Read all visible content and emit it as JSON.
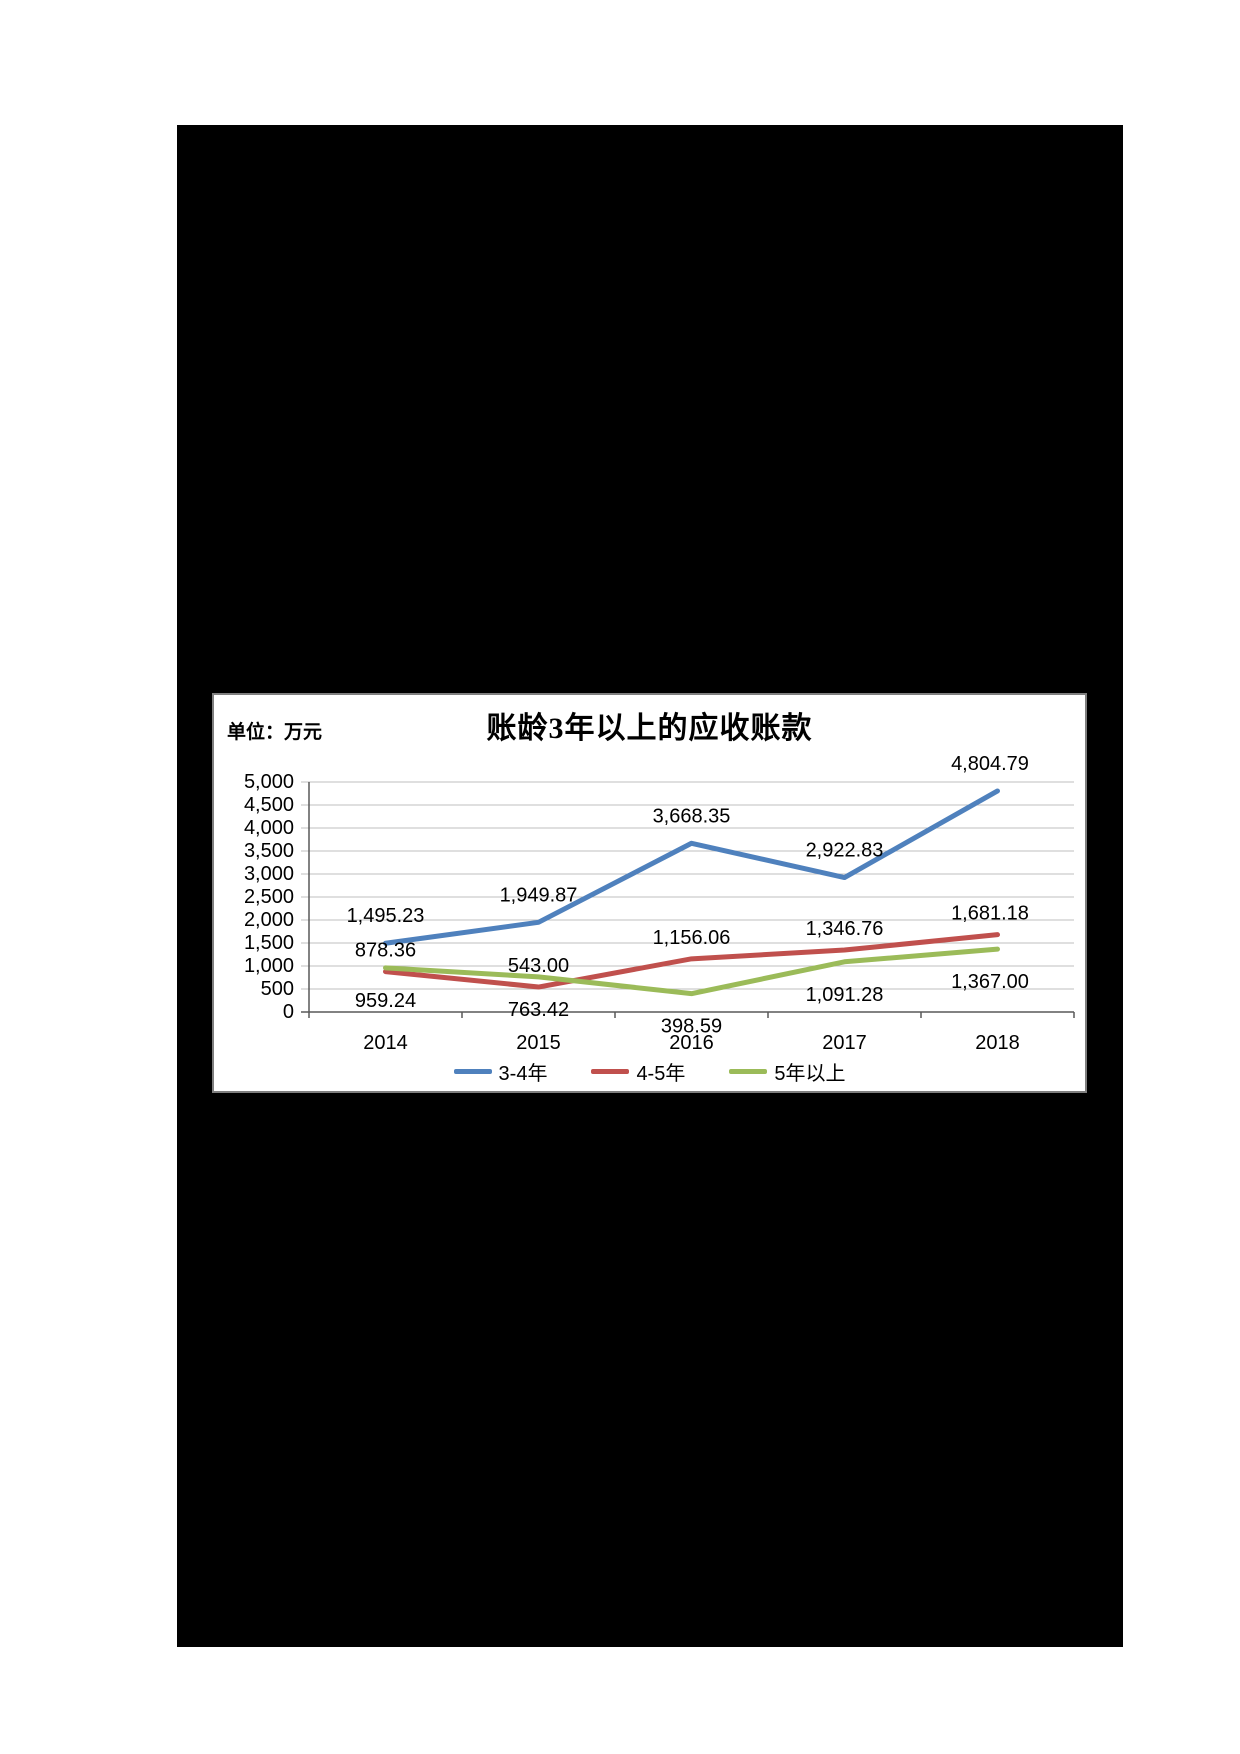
{
  "colors": {
    "page_background": "#ffffff",
    "document_panel": "#000000",
    "chart_border": "#7f7f7f",
    "gridline": "#bfbfbf",
    "axis": "#595959",
    "label_text": "#000000"
  },
  "chart_data": {
    "type": "line",
    "title": "账龄3年以上的应收账款",
    "unit_label": "单位：万元",
    "categories": [
      "2014",
      "2015",
      "2016",
      "2017",
      "2018"
    ],
    "series": [
      {
        "name": "3-4年",
        "color": "#4F81BD",
        "values": [
          1495.23,
          1949.87,
          3668.35,
          2922.83,
          4804.79
        ],
        "labels": [
          "1,495.23",
          "1,949.87",
          "3,668.35",
          "2,922.83",
          "4,804.79"
        ],
        "label_position": "above"
      },
      {
        "name": "4-5年",
        "color": "#C0504D",
        "values": [
          878.36,
          543.0,
          1156.06,
          1346.76,
          1681.18
        ],
        "labels": [
          "878.36",
          "543.00",
          "1,156.06",
          "1,346.76",
          "1,681.18"
        ],
        "label_position": "above"
      },
      {
        "name": "5年以上",
        "color": "#9BBB59",
        "values": [
          959.24,
          763.42,
          398.59,
          1091.28,
          1367.0
        ],
        "labels": [
          "959.24",
          "763.42",
          "398.59",
          "1,091.28",
          "1,367.00"
        ],
        "label_position": "below"
      }
    ],
    "ylim": [
      0,
      5000
    ],
    "ytick_step": 500,
    "y_tick_labels": [
      "5,000",
      "4,500",
      "4,000",
      "3,500",
      "3,000",
      "2,500",
      "2,000",
      "1,500",
      "1,000",
      "500",
      "0"
    ],
    "grid": "horizontal",
    "legend_position": "bottom"
  }
}
